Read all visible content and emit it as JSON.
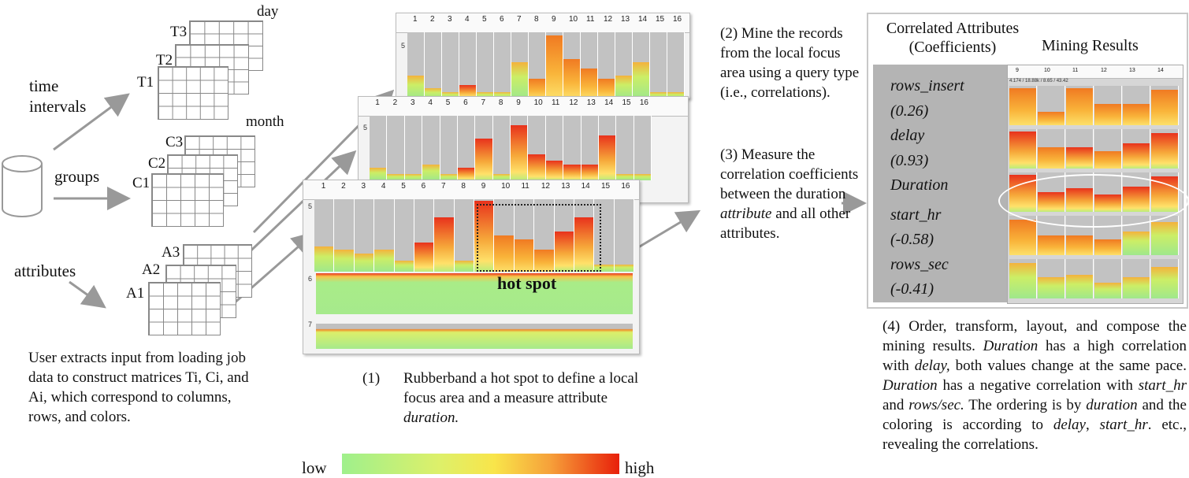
{
  "left": {
    "stack_time_label": "time\nintervals",
    "stack_groups_label": "groups",
    "stack_attr_label": "attributes",
    "day": "day",
    "month": "month",
    "T1": "T1",
    "T2": "T2",
    "T3": "T3",
    "C1": "C1",
    "C2": "C2",
    "C3": "C3",
    "A1": "A1",
    "A2": "A2",
    "A3": "A3",
    "caption": "User extracts input from loading job data to construct matrices Ti, Ci, and Ai, which correspond to columns, rows, and colors."
  },
  "panels": {
    "ticks": [
      "1",
      "2",
      "3",
      "4",
      "5",
      "6",
      "7",
      "8",
      "9",
      "10",
      "11",
      "12",
      "13",
      "14",
      "15",
      "16"
    ],
    "start_hr": "start_hr",
    "delay": "delay",
    "duration": "duration",
    "row5": "5",
    "row6": "6",
    "row7": "7",
    "hot_spot": "hot spot"
  },
  "step1": {
    "num": "(1)",
    "text_a": "Rubberband a hot spot to define a local focus area and a measure attribute ",
    "text_b": "duration."
  },
  "legend": {
    "low": "low",
    "high": "high"
  },
  "step2": "(2) Mine the records from the local focus area using a query type (i.e., correlations).",
  "step3_a": "(3) Measure the correlation coefficients between the duration ",
  "step3_b": "attribute",
  "step3_c": " and all other attributes.",
  "results": {
    "header_left": "Correlated Attributes\n(Coefficients)",
    "header_right": "Mining Results",
    "items": [
      "rows_insert",
      "(0.26)",
      "delay",
      "(0.93)",
      "Duration",
      "start_hr",
      "(-0.58)",
      "rows_sec",
      "(-0.41)"
    ],
    "ticks": [
      "9",
      "10",
      "11",
      "12",
      "13",
      "14"
    ],
    "stats": "4.174 / 18.88k / 8.65 / 43.42"
  },
  "step4": {
    "p1": "(4) Order, transform, layout, and compose the mining results. ",
    "p2": "Duration",
    "p3": " has a high correlation with ",
    "p4": "delay,",
    "p5": " both values change at the same pace. ",
    "p6": "Duration",
    "p7": " has a negative correlation with ",
    "p8": "start_hr",
    "p9": " and ",
    "p10": "rows/sec.",
    "p11": " The ordering is by ",
    "p12": "duration",
    "p13": " and the coloring is according to ",
    "p14": "delay",
    "p15": ", ",
    "p16": "start_hr",
    "p17": ". etc., revealing the correlations."
  },
  "colors": {
    "low": "#9ff08c",
    "mid": "#f9e54a",
    "high": "#e8200a",
    "arrow": "#999999"
  }
}
